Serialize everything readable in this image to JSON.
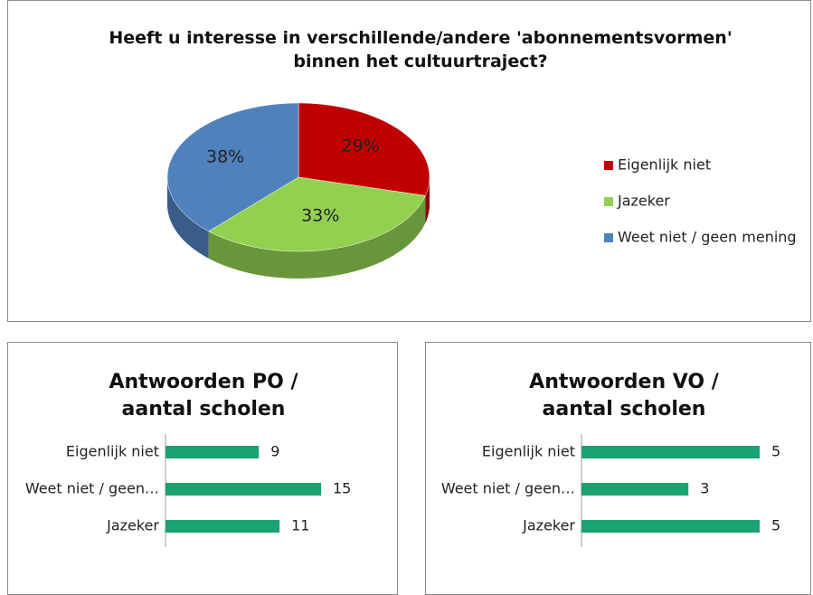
{
  "chart_data": [
    {
      "type": "pie",
      "title": "Heeft u interesse in verschillende/andere 'abonnementsvormen' binnen het cultuurtraject?",
      "categories": [
        "Eigenlijk niet",
        "Jazeker",
        "Weet niet / geen mening"
      ],
      "values": [
        29,
        33,
        38
      ],
      "value_labels": [
        "29%",
        "33%",
        "38%"
      ],
      "colors": [
        "#c00000",
        "#92d050",
        "#4f81bd"
      ],
      "legend": "right"
    },
    {
      "type": "bar",
      "orientation": "horizontal",
      "title": "Antwoorden PO / aantal scholen",
      "categories": [
        "Eigenlijk niet",
        "Weet niet / geen…",
        "Jazeker"
      ],
      "values": [
        9,
        15,
        11
      ],
      "color": "#1aa36f"
    },
    {
      "type": "bar",
      "orientation": "horizontal",
      "title": "Antwoorden VO / aantal scholen",
      "categories": [
        "Eigenlijk niet",
        "Weet niet / geen…",
        "Jazeker"
      ],
      "values": [
        5,
        3,
        5
      ],
      "color": "#1aa36f"
    }
  ]
}
